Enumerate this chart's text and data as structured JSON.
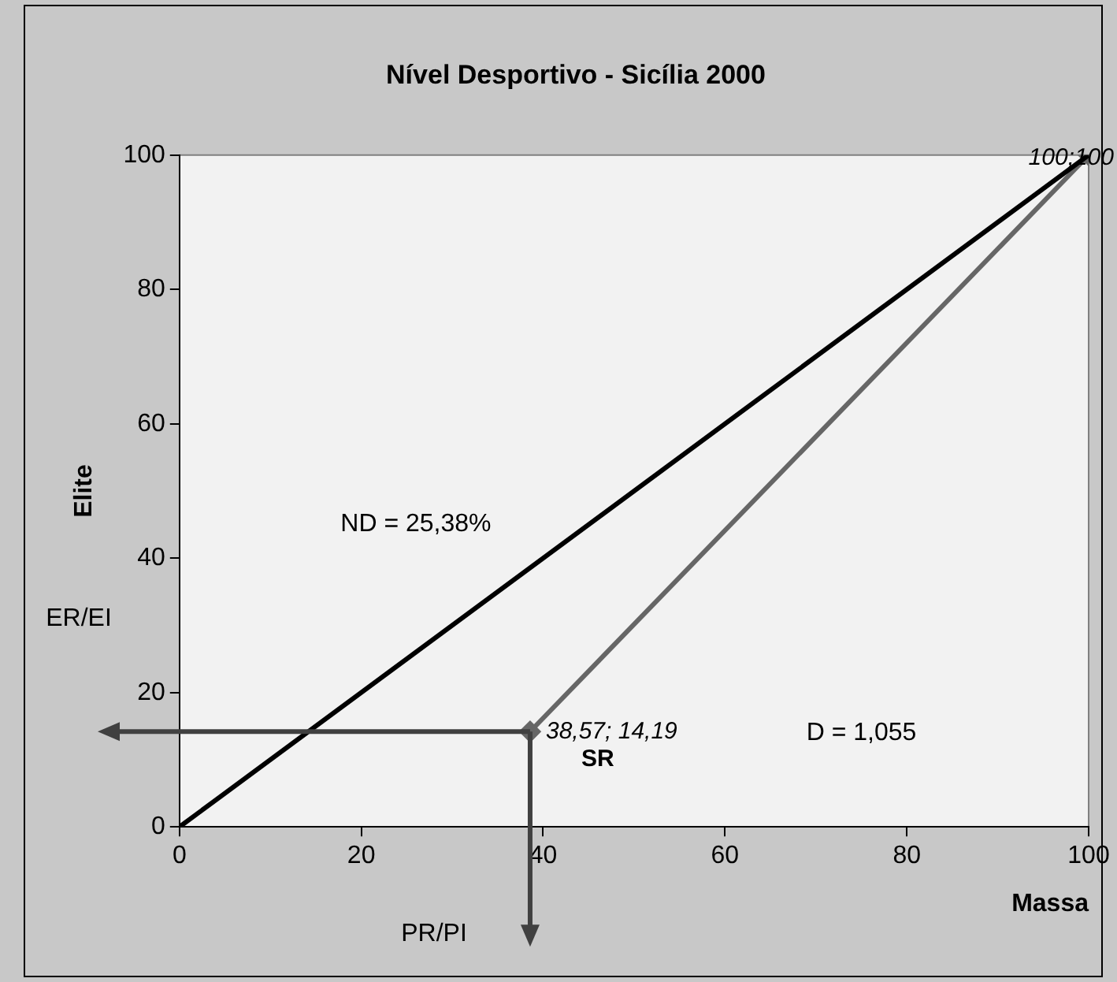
{
  "chart_data": {
    "type": "line",
    "title": "Nível Desportivo - Sicília 2000",
    "xlabel": "Massa",
    "ylabel": "Elite",
    "series": [
      {
        "color": "#000000",
        "x": [
          0,
          100
        ],
        "values": [
          0,
          100
        ],
        "marker": "none"
      },
      {
        "color": "#666666",
        "x": [
          38.57,
          100
        ],
        "values": [
          14.19,
          100
        ],
        "marker": "diamond"
      }
    ],
    "xlim": [
      0,
      100
    ],
    "xticks": [
      0,
      20,
      40,
      60,
      80,
      100
    ],
    "ylim": [
      0,
      100
    ],
    "yticks": [
      0,
      20,
      40,
      60,
      80,
      100
    ],
    "grid": false,
    "legend": false,
    "line_style": "solid",
    "annotations": [
      {
        "text": "38,57; 14,19",
        "x": 38.57,
        "y": 14.19
      },
      {
        "text": "100;100",
        "x": 100,
        "y": 100
      },
      "ND = 25,38%",
      "D = 1,055",
      "SR",
      "ER/EI",
      "PR/PI"
    ]
  }
}
